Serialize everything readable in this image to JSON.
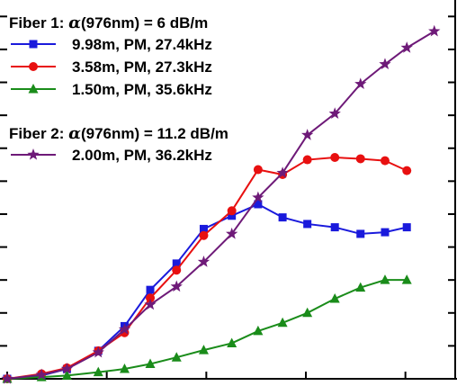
{
  "chart_data": {
    "type": "line",
    "title": "",
    "xlabel": "",
    "ylabel": "",
    "xlim": [
      0,
      1.5
    ],
    "ylim": [
      0,
      1.15
    ],
    "x_ticks": [
      0,
      0.3333,
      0.6667,
      1.0,
      1.3333
    ],
    "y_ticks": [
      0.1,
      0.2,
      0.3,
      0.4,
      0.5,
      0.6,
      0.7,
      0.8,
      0.9,
      1.0,
      1.1
    ],
    "grid": false,
    "legend_position": "top-left",
    "legend_groups": [
      {
        "heading_prefix": "Fiber 1: ",
        "heading_symbol": "α",
        "heading_suffix": "(976nm) = 6 dB/m",
        "series_indices": [
          0,
          1,
          2
        ]
      },
      {
        "heading_prefix": "Fiber 2: ",
        "heading_symbol": "α",
        "heading_suffix": "(976nm) = 11.2 dB/m",
        "series_indices": [
          3
        ]
      }
    ],
    "series": [
      {
        "name": "9.98m, PM, 27.4kHz",
        "color": "#1a1adc",
        "marker": "square",
        "x": [
          0.0,
          0.115,
          0.2,
          0.305,
          0.393,
          0.479,
          0.567,
          0.658,
          0.752,
          0.84,
          0.922,
          1.005,
          1.097,
          1.183,
          1.265,
          1.338
        ],
        "y": [
          0.0,
          0.01,
          0.03,
          0.085,
          0.16,
          0.27,
          0.35,
          0.455,
          0.495,
          0.53,
          0.49,
          0.47,
          0.46,
          0.44,
          0.445,
          0.46
        ]
      },
      {
        "name": "3.58m, PM, 27.3kHz",
        "color": "#e81010",
        "marker": "circle",
        "x": [
          0.0,
          0.115,
          0.2,
          0.305,
          0.393,
          0.479,
          0.567,
          0.658,
          0.752,
          0.84,
          0.922,
          1.005,
          1.097,
          1.183,
          1.265,
          1.338
        ],
        "y": [
          0.0,
          0.015,
          0.033,
          0.085,
          0.14,
          0.245,
          0.33,
          0.435,
          0.51,
          0.635,
          0.62,
          0.665,
          0.672,
          0.668,
          0.662,
          0.632
        ]
      },
      {
        "name": "1.50m, PM, 35.6kHz",
        "color": "#1a8c1a",
        "marker": "triangle",
        "x": [
          0.0,
          0.115,
          0.2,
          0.305,
          0.393,
          0.479,
          0.567,
          0.658,
          0.752,
          0.84,
          0.922,
          1.005,
          1.097,
          1.183,
          1.265,
          1.338
        ],
        "y": [
          0.0,
          0.005,
          0.01,
          0.02,
          0.03,
          0.045,
          0.065,
          0.087,
          0.108,
          0.145,
          0.17,
          0.2,
          0.243,
          0.277,
          0.3,
          0.3
        ]
      },
      {
        "name": "2.00m, PM, 36.2kHz",
        "color": "#6e1a78",
        "marker": "star",
        "x": [
          0.0,
          0.115,
          0.2,
          0.305,
          0.393,
          0.479,
          0.567,
          0.658,
          0.752,
          0.84,
          0.922,
          1.005,
          1.097,
          1.183,
          1.265,
          1.338,
          1.43
        ],
        "y": [
          0.0,
          0.012,
          0.03,
          0.08,
          0.15,
          0.225,
          0.28,
          0.355,
          0.44,
          0.55,
          0.625,
          0.74,
          0.805,
          0.895,
          0.955,
          1.005,
          1.055
        ]
      }
    ]
  }
}
